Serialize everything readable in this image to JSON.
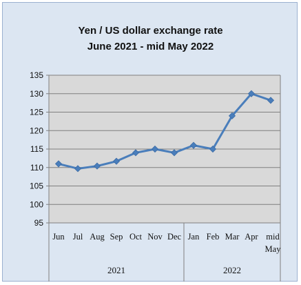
{
  "chart_data": {
    "type": "line",
    "title": "Yen / US dollar exchange rate",
    "subtitle": "June 2021  - mid May 2022",
    "categories": [
      "Jun",
      "Jul",
      "Aug",
      "Sep",
      "Oct",
      "Nov",
      "Dec",
      "Jan",
      "Feb",
      "Mar",
      "Apr",
      "mid May"
    ],
    "year_groups": [
      {
        "label": "2021",
        "start": 0,
        "end": 6
      },
      {
        "label": "2022",
        "start": 7,
        "end": 11
      }
    ],
    "series": [
      {
        "values": [
          111.0,
          109.7,
          110.4,
          111.7,
          114.0,
          115.0,
          114.0,
          116.0,
          115.0,
          124.0,
          130.0,
          128.2
        ]
      }
    ],
    "ylim": [
      95,
      135
    ],
    "yticks": [
      95,
      100,
      105,
      110,
      115,
      120,
      125,
      130,
      135
    ],
    "grid": true,
    "legend": "none",
    "colors": {
      "line": "#4a7ebb",
      "plot_bg": "#d9d9d9",
      "frame_bg": "#dce6f2"
    }
  }
}
